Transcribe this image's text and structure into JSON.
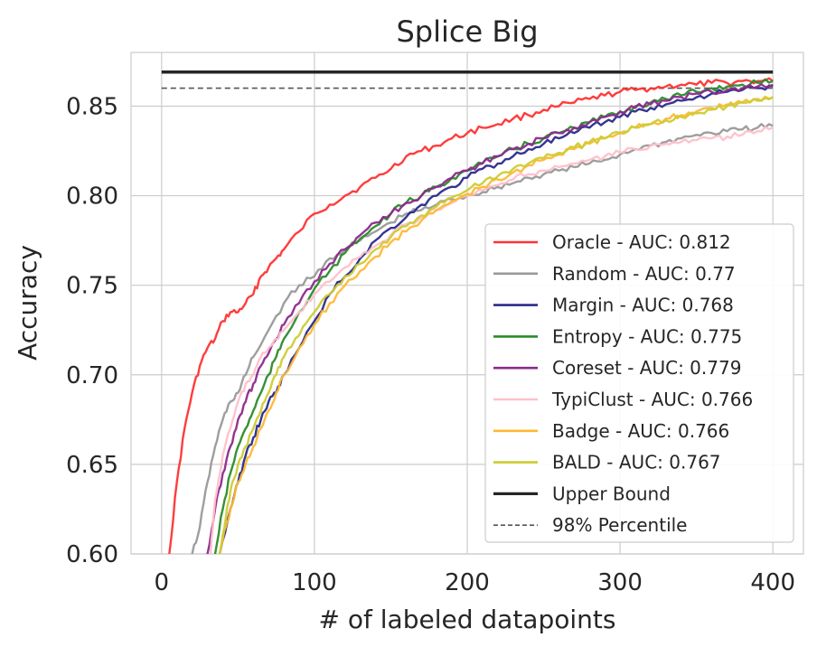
{
  "chart_data": {
    "type": "line",
    "title": "Splice Big",
    "xlabel": "# of labeled datapoints",
    "ylabel": "Accuracy",
    "xlim": [
      -20,
      420
    ],
    "ylim": [
      0.6,
      0.88
    ],
    "xticks": [
      0,
      100,
      200,
      300,
      400
    ],
    "xtick_labels": [
      "0",
      "100",
      "200",
      "300",
      "400"
    ],
    "yticks": [
      0.6,
      0.65,
      0.7,
      0.75,
      0.8,
      0.85
    ],
    "ytick_labels": [
      "0.60",
      "0.65",
      "0.70",
      "0.75",
      "0.80",
      "0.85"
    ],
    "grid": true,
    "legend_position": "lower-right",
    "series": [
      {
        "name": "Oracle - AUC: 0.812",
        "color": "#ff3333",
        "x": [
          5,
          10,
          15,
          20,
          25,
          30,
          35,
          40,
          45,
          50,
          55,
          60,
          65,
          70,
          75,
          80,
          90,
          100,
          110,
          120,
          130,
          140,
          150,
          160,
          170,
          180,
          190,
          200,
          210,
          220,
          230,
          240,
          250,
          260,
          270,
          280,
          290,
          300,
          310,
          320,
          330,
          340,
          350,
          360,
          370,
          380,
          390,
          400
        ],
        "values": [
          0.6,
          0.64,
          0.67,
          0.69,
          0.705,
          0.715,
          0.72,
          0.73,
          0.735,
          0.735,
          0.74,
          0.745,
          0.755,
          0.76,
          0.765,
          0.77,
          0.78,
          0.79,
          0.795,
          0.8,
          0.805,
          0.81,
          0.815,
          0.822,
          0.825,
          0.828,
          0.832,
          0.835,
          0.838,
          0.84,
          0.843,
          0.845,
          0.848,
          0.85,
          0.852,
          0.854,
          0.856,
          0.858,
          0.859,
          0.86,
          0.861,
          0.862,
          0.862,
          0.863,
          0.863,
          0.864,
          0.864,
          0.864
        ]
      },
      {
        "name": "Random - AUC: 0.77",
        "color": "#999999",
        "x": [
          20,
          25,
          30,
          35,
          40,
          45,
          50,
          55,
          60,
          70,
          80,
          90,
          100,
          110,
          120,
          130,
          140,
          150,
          160,
          170,
          180,
          190,
          200,
          210,
          220,
          230,
          240,
          250,
          260,
          270,
          280,
          290,
          300,
          310,
          320,
          330,
          340,
          350,
          360,
          370,
          380,
          390,
          400
        ],
        "values": [
          0.6,
          0.615,
          0.64,
          0.66,
          0.675,
          0.685,
          0.69,
          0.7,
          0.71,
          0.725,
          0.74,
          0.75,
          0.755,
          0.765,
          0.77,
          0.775,
          0.78,
          0.785,
          0.79,
          0.792,
          0.795,
          0.798,
          0.8,
          0.802,
          0.805,
          0.807,
          0.81,
          0.812,
          0.814,
          0.816,
          0.818,
          0.82,
          0.823,
          0.826,
          0.828,
          0.83,
          0.832,
          0.834,
          0.835,
          0.836,
          0.837,
          0.838,
          0.839
        ]
      },
      {
        "name": "Margin - AUC: 0.768",
        "color": "#2a2a8c",
        "x": [
          38,
          45,
          50,
          55,
          60,
          65,
          70,
          75,
          80,
          90,
          100,
          110,
          120,
          130,
          140,
          150,
          160,
          170,
          180,
          190,
          200,
          210,
          220,
          230,
          240,
          250,
          260,
          270,
          280,
          290,
          300,
          310,
          320,
          330,
          340,
          350,
          360,
          370,
          380,
          390,
          400
        ],
        "values": [
          0.6,
          0.625,
          0.64,
          0.655,
          0.665,
          0.675,
          0.685,
          0.69,
          0.7,
          0.715,
          0.73,
          0.745,
          0.755,
          0.765,
          0.775,
          0.782,
          0.788,
          0.795,
          0.8,
          0.805,
          0.81,
          0.815,
          0.818,
          0.822,
          0.826,
          0.829,
          0.832,
          0.835,
          0.838,
          0.841,
          0.844,
          0.847,
          0.849,
          0.851,
          0.853,
          0.855,
          0.857,
          0.858,
          0.859,
          0.86,
          0.861
        ]
      },
      {
        "name": "Entropy - AUC: 0.775",
        "color": "#2a8c2a",
        "x": [
          35,
          40,
          45,
          50,
          55,
          60,
          65,
          70,
          75,
          80,
          90,
          100,
          110,
          120,
          130,
          140,
          150,
          160,
          170,
          180,
          190,
          200,
          210,
          220,
          230,
          240,
          250,
          260,
          270,
          280,
          290,
          300,
          310,
          320,
          330,
          340,
          350,
          360,
          370,
          380,
          390,
          400
        ],
        "values": [
          0.6,
          0.625,
          0.645,
          0.66,
          0.67,
          0.68,
          0.69,
          0.7,
          0.71,
          0.72,
          0.735,
          0.748,
          0.758,
          0.768,
          0.776,
          0.783,
          0.79,
          0.796,
          0.8,
          0.805,
          0.81,
          0.814,
          0.818,
          0.822,
          0.826,
          0.829,
          0.832,
          0.835,
          0.838,
          0.841,
          0.844,
          0.847,
          0.85,
          0.852,
          0.854,
          0.856,
          0.858,
          0.86,
          0.861,
          0.862,
          0.863,
          0.864
        ]
      },
      {
        "name": "Coreset - AUC: 0.779",
        "color": "#8c2a8c",
        "x": [
          30,
          35,
          40,
          45,
          50,
          55,
          60,
          65,
          70,
          75,
          80,
          90,
          100,
          110,
          120,
          130,
          140,
          150,
          160,
          170,
          180,
          190,
          200,
          210,
          220,
          230,
          240,
          250,
          260,
          270,
          280,
          290,
          300,
          310,
          320,
          330,
          340,
          350,
          360,
          370,
          380,
          390,
          400
        ],
        "values": [
          0.6,
          0.625,
          0.645,
          0.66,
          0.675,
          0.685,
          0.695,
          0.705,
          0.712,
          0.72,
          0.728,
          0.74,
          0.752,
          0.762,
          0.77,
          0.778,
          0.785,
          0.79,
          0.796,
          0.8,
          0.805,
          0.81,
          0.814,
          0.818,
          0.822,
          0.826,
          0.829,
          0.832,
          0.835,
          0.838,
          0.841,
          0.844,
          0.847,
          0.849,
          0.851,
          0.853,
          0.855,
          0.857,
          0.858,
          0.859,
          0.86,
          0.861,
          0.862
        ]
      },
      {
        "name": "TypiClust - AUC: 0.766",
        "color": "#ffc0cb",
        "x": [
          32,
          35,
          40,
          45,
          50,
          55,
          60,
          65,
          70,
          75,
          80,
          90,
          100,
          110,
          120,
          130,
          140,
          150,
          160,
          170,
          180,
          190,
          200,
          210,
          220,
          230,
          240,
          250,
          260,
          270,
          280,
          290,
          300,
          310,
          320,
          330,
          340,
          350,
          360,
          370,
          380,
          390,
          400
        ],
        "values": [
          0.6,
          0.63,
          0.655,
          0.67,
          0.685,
          0.695,
          0.7,
          0.71,
          0.715,
          0.72,
          0.725,
          0.735,
          0.745,
          0.752,
          0.76,
          0.766,
          0.772,
          0.778,
          0.784,
          0.788,
          0.792,
          0.796,
          0.8,
          0.803,
          0.806,
          0.809,
          0.812,
          0.814,
          0.816,
          0.818,
          0.82,
          0.822,
          0.824,
          0.826,
          0.828,
          0.829,
          0.83,
          0.831,
          0.832,
          0.833,
          0.834,
          0.836,
          0.838
        ]
      },
      {
        "name": "Badge - AUC: 0.766",
        "color": "#ffb833",
        "x": [
          38,
          42,
          45,
          50,
          55,
          60,
          65,
          70,
          75,
          80,
          90,
          100,
          110,
          120,
          130,
          140,
          150,
          160,
          170,
          180,
          190,
          200,
          210,
          220,
          230,
          240,
          250,
          260,
          270,
          280,
          290,
          300,
          310,
          320,
          330,
          340,
          350,
          360,
          370,
          380,
          390,
          400
        ],
        "values": [
          0.6,
          0.615,
          0.625,
          0.64,
          0.65,
          0.66,
          0.67,
          0.68,
          0.69,
          0.7,
          0.715,
          0.728,
          0.74,
          0.75,
          0.758,
          0.766,
          0.774,
          0.78,
          0.786,
          0.792,
          0.797,
          0.801,
          0.805,
          0.809,
          0.813,
          0.817,
          0.82,
          0.823,
          0.826,
          0.829,
          0.832,
          0.835,
          0.838,
          0.84,
          0.843,
          0.845,
          0.847,
          0.849,
          0.851,
          0.852,
          0.854,
          0.855
        ]
      },
      {
        "name": "BALD - AUC: 0.767",
        "color": "#cccc33",
        "x": [
          38,
          42,
          45,
          50,
          55,
          60,
          65,
          70,
          75,
          80,
          90,
          100,
          110,
          120,
          130,
          140,
          150,
          160,
          170,
          180,
          190,
          200,
          210,
          220,
          230,
          240,
          250,
          260,
          270,
          280,
          290,
          300,
          310,
          320,
          330,
          340,
          350,
          360,
          370,
          380,
          390,
          400
        ],
        "values": [
          0.6,
          0.62,
          0.635,
          0.65,
          0.66,
          0.67,
          0.68,
          0.69,
          0.7,
          0.71,
          0.722,
          0.735,
          0.745,
          0.755,
          0.762,
          0.77,
          0.777,
          0.783,
          0.789,
          0.794,
          0.799,
          0.803,
          0.807,
          0.811,
          0.815,
          0.818,
          0.821,
          0.824,
          0.827,
          0.83,
          0.832,
          0.835,
          0.838,
          0.84,
          0.842,
          0.844,
          0.846,
          0.848,
          0.85,
          0.852,
          0.853,
          0.855
        ]
      }
    ],
    "reference_lines": [
      {
        "name": "Upper Bound",
        "color": "#262626",
        "style": "solid",
        "x": [
          0,
          400
        ],
        "values": [
          0.869,
          0.869
        ]
      },
      {
        "name": "98% Percentile",
        "color": "#555555",
        "style": "dashed",
        "x": [
          0,
          400
        ],
        "values": [
          0.86,
          0.86
        ]
      }
    ]
  }
}
